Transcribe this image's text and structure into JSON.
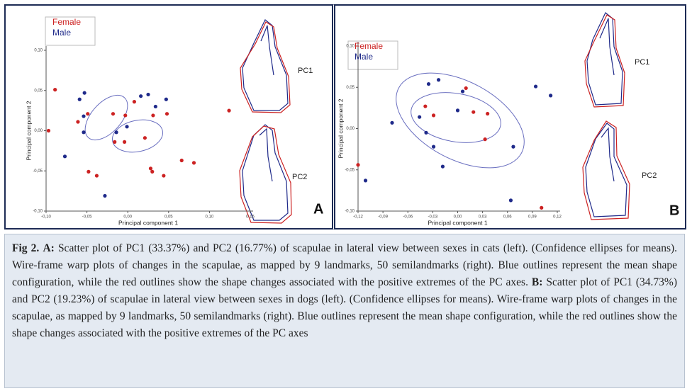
{
  "chart_data": [
    {
      "type": "scatter",
      "xlabel": "Principal component 1",
      "ylabel": "Principal component 2",
      "xlim": [
        -0.1,
        0.15
      ],
      "xticks": [
        {
          "value": -0.1,
          "label": "-0,10"
        },
        {
          "value": -0.05,
          "label": "-0,05"
        },
        {
          "value": 0,
          "label": "0,00"
        },
        {
          "value": 0.05,
          "label": "0,05"
        },
        {
          "value": 0.1,
          "label": "0,10"
        },
        {
          "value": 0.15,
          "label": "0,15"
        }
      ],
      "ylim": [
        -0.1,
        0.1
      ],
      "yticks": [
        {
          "value": -0.1,
          "label": "-0,10"
        },
        {
          "value": -0.05,
          "label": "-0,05"
        },
        {
          "value": 0,
          "label": "0,00"
        },
        {
          "value": 0.05,
          "label": "0,05"
        },
        {
          "value": 0.1,
          "label": "0,10"
        }
      ],
      "series": [
        {
          "name": "Female",
          "color": "#cc2222",
          "x": [
            -0.089,
            -0.097,
            -0.049,
            -0.061,
            -0.018,
            -0.003,
            0.008,
            0.031,
            0.048,
            0.124,
            -0.016,
            -0.004,
            0.021,
            0.066,
            0.081,
            0.028,
            0.03,
            0.044,
            -0.048,
            -0.038
          ],
          "values": [
            0.051,
            0.0,
            0.021,
            0.011,
            0.021,
            0.019,
            0.036,
            0.019,
            0.021,
            0.025,
            -0.014,
            -0.014,
            -0.009,
            -0.037,
            -0.04,
            -0.047,
            -0.051,
            -0.056,
            -0.051,
            -0.056
          ]
        },
        {
          "name": "Male",
          "color": "#1f2a8a",
          "x": [
            -0.053,
            -0.059,
            -0.054,
            -0.054,
            -0.077,
            -0.014,
            -0.001,
            0.016,
            0.025,
            0.034,
            0.047,
            -0.028
          ],
          "values": [
            0.047,
            0.039,
            0.018,
            -0.002,
            -0.032,
            -0.002,
            0.005,
            0.043,
            0.045,
            0.03,
            0.039,
            -0.081
          ]
        }
      ],
      "annotations": [
        "PC1",
        "PC2",
        "A"
      ]
    },
    {
      "type": "scatter",
      "xlabel": "Principal component 1",
      "ylabel": "Principal component 2",
      "xlim": [
        -0.12,
        0.12
      ],
      "xticks": [
        {
          "value": -0.12,
          "label": "-0,12"
        },
        {
          "value": -0.09,
          "label": "-0,09"
        },
        {
          "value": -0.06,
          "label": "-0,06"
        },
        {
          "value": -0.03,
          "label": "-0,03"
        },
        {
          "value": 0,
          "label": "0,00"
        },
        {
          "value": 0.03,
          "label": "0,03"
        },
        {
          "value": 0.06,
          "label": "0,06"
        },
        {
          "value": 0.09,
          "label": "0,09"
        },
        {
          "value": 0.12,
          "label": "0,12"
        }
      ],
      "ylim": [
        -0.1,
        0.1
      ],
      "yticks": [
        {
          "value": -0.1,
          "label": "-0,10"
        },
        {
          "value": -0.05,
          "label": "-0,05"
        },
        {
          "value": 0,
          "label": "0,00"
        },
        {
          "value": 0.05,
          "label": "0,05"
        },
        {
          "value": 0.1,
          "label": "0,10"
        }
      ],
      "series": [
        {
          "name": "Female",
          "color": "#cc2222",
          "x": [
            -0.12,
            -0.039,
            -0.029,
            0.01,
            0.019,
            0.033,
            0.036,
            0.101
          ],
          "values": [
            -0.044,
            0.027,
            0.016,
            0.049,
            0.02,
            -0.013,
            0.018,
            -0.096
          ]
        },
        {
          "name": "Male",
          "color": "#1f2a8a",
          "x": [
            -0.111,
            -0.079,
            -0.046,
            -0.038,
            -0.035,
            -0.023,
            0.006,
            0.0,
            -0.029,
            -0.018,
            0.067,
            0.094,
            0.112,
            0.064
          ],
          "values": [
            -0.063,
            0.007,
            0.014,
            -0.005,
            0.054,
            0.059,
            0.045,
            0.022,
            -0.022,
            -0.046,
            -0.022,
            0.051,
            0.04,
            -0.087
          ]
        }
      ],
      "annotations": [
        "PC1",
        "PC2",
        "B"
      ]
    }
  ],
  "caption": {
    "figure_label": "Fig 2.",
    "a_label": "A:",
    "a_text": "Scatter plot of PC1 (33.37%) and PC2 (16.77%) of scapulae in lateral view between sexes in cats (left). (Confidence ellipses for means). Wire-frame warp plots of changes in the scapulae, as mapped by 9 landmarks, 50 semilandmarks (right). Blue outlines represent the mean shape configuration, while the red outlines show the shape changes associated with the positive extremes of the PC axes.",
    "b_label": "B:",
    "b_text": "Scatter plot of PC1 (34.73%) and PC2 (19.23%) of scapulae in lateral view between sexes in dogs (left). (Confidence ellipses for means). Wire-frame warp plots of changes in the scapulae, as mapped by 9 landmarks, 50 semilandmarks (right). Blue outlines represent the mean shape configuration, while the red outlines show the shape changes associated with the positive extremes of the PC axes"
  }
}
